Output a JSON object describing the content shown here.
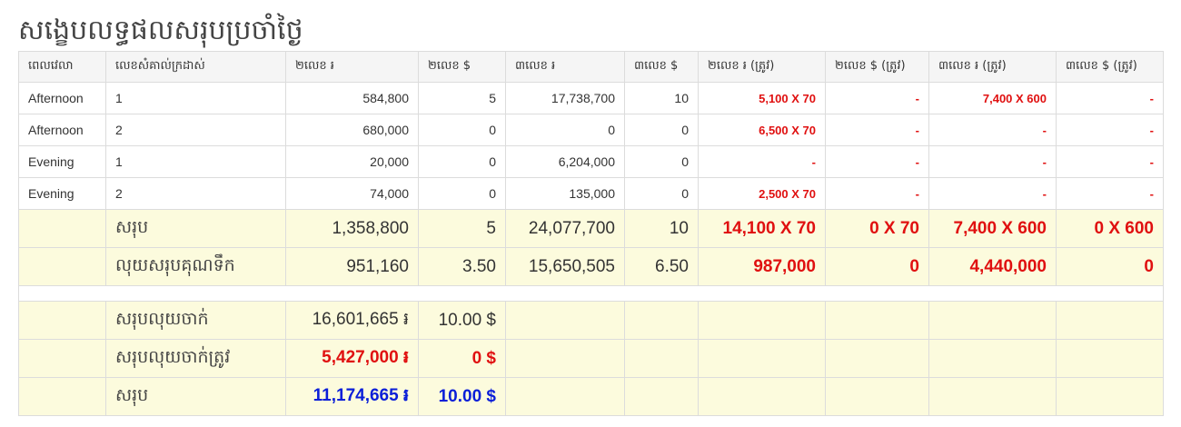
{
  "page_title": "សង្ខេបលទ្ធផលសរុបប្រចាំថ្ងៃ",
  "columns": [
    "ពេលវេលា",
    "លេខសំគាល់ក្រដាស់",
    "២លេខ ៛",
    "២លេខ $",
    "៣លេខ ៛",
    "៣លេខ $",
    "២លេខ ៛ (ត្រូវ)",
    "២លេខ $ (ត្រូវ)",
    "៣លេខ ៛ (ត្រូវ)",
    "៣លេខ $ (ត្រូវ)"
  ],
  "rows": [
    {
      "time": "Afternoon",
      "sheet": "1",
      "two_riel": "584,800",
      "two_usd": "5",
      "three_riel": "17,738,700",
      "three_usd": "10",
      "two_riel_win": "5,100 X 70",
      "two_usd_win": "-",
      "three_riel_win": "7,400 X 600",
      "three_usd_win": "-"
    },
    {
      "time": "Afternoon",
      "sheet": "2",
      "two_riel": "680,000",
      "two_usd": "0",
      "three_riel": "0",
      "three_usd": "0",
      "two_riel_win": "6,500 X 70",
      "two_usd_win": "-",
      "three_riel_win": "-",
      "three_usd_win": "-"
    },
    {
      "time": "Evening",
      "sheet": "1",
      "two_riel": "20,000",
      "two_usd": "0",
      "three_riel": "6,204,000",
      "three_usd": "0",
      "two_riel_win": "-",
      "two_usd_win": "-",
      "three_riel_win": "-",
      "three_usd_win": "-"
    },
    {
      "time": "Evening",
      "sheet": "2",
      "two_riel": "74,000",
      "two_usd": "0",
      "three_riel": "135,000",
      "three_usd": "0",
      "two_riel_win": "2,500 X 70",
      "two_usd_win": "-",
      "three_riel_win": "-",
      "three_usd_win": "-"
    }
  ],
  "total": {
    "label": "សរុប",
    "two_riel": "1,358,800",
    "two_usd": "5",
    "three_riel": "24,077,700",
    "three_usd": "10",
    "two_riel_win": "14,100 X 70",
    "two_usd_win": "0 X 70",
    "three_riel_win": "7,400 X 600",
    "three_usd_win": "0 X 600"
  },
  "water": {
    "label": "លុយសរុបគុណទឹក",
    "two_riel": "951,160",
    "two_usd": "3.50",
    "three_riel": "15,650,505",
    "three_usd": "6.50",
    "two_riel_win": "987,000",
    "two_usd_win": "0",
    "three_riel_win": "4,440,000",
    "three_usd_win": "0"
  },
  "money_out": {
    "label": "សរុបលុយចាក់",
    "riel": "16,601,665 ៛",
    "usd": "10.00 $"
  },
  "money_win": {
    "label": "សរុបលុយចាក់ត្រូវ",
    "riel": "5,427,000 ៛",
    "usd": "0 $"
  },
  "grand_total": {
    "label": "សរុប",
    "riel": "11,174,665 ៛",
    "usd": "10.00 $"
  },
  "colors": {
    "highlight_bg": "#fcfbdd",
    "win_red": "#e01010",
    "total_blue": "#0a1ed8"
  }
}
